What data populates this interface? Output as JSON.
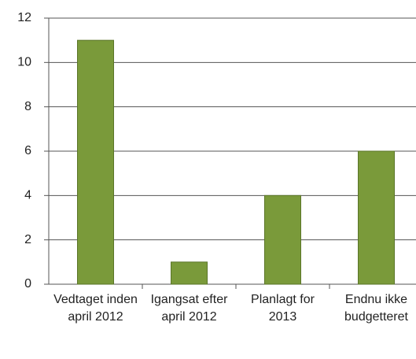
{
  "chart_data": {
    "type": "bar",
    "categories": [
      "Vedtaget inden april 2012",
      "Igangsat efter april 2012",
      "Planlagt for 2013",
      "Endnu ikke budgetteret"
    ],
    "values": [
      11,
      1,
      4,
      6
    ],
    "color": "#7a9a3a",
    "ylim": [
      0,
      12
    ],
    "yticks": [
      0,
      2,
      4,
      6,
      8,
      10,
      12
    ],
    "grid": true
  }
}
